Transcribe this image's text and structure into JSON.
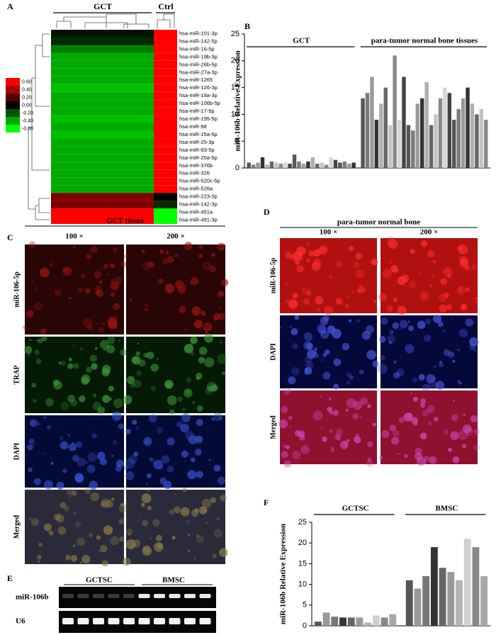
{
  "chart_data": [
    {
      "type": "heatmap",
      "panel": "A",
      "rows": [
        "hsa-miR-101-3p",
        "hsa-miR-142-5p",
        "hsa-miR-16-5p",
        "hsa-miR-19b-3p",
        "hsa-miR-26b-5p",
        "hsa-miR-27a-3p",
        "hsa-miR-1265",
        "hsa-miR-126-3p",
        "hsa-miR-19a-3p",
        "hsa-miR-106b-5p",
        "hsa-miR-17-5p",
        "hsa-miR-195-5p",
        "hsa-miR-98",
        "hsa-miR-15a-5p",
        "hsa-miR-25-3p",
        "hsa-miR-93-5p",
        "hsa-miR-20a-5p",
        "hsa-miR-376b",
        "hsa-miR-326",
        "hsa-miR-520c-5p",
        "hsa-miR-526a",
        "hsa-miR-223-3p",
        "hsa-miR-142-3p",
        "hsa-miR-451a",
        "hsa-miR-491-3p"
      ],
      "series": [
        {
          "name": "GCT",
          "values": [
            -0.05,
            -0.1,
            -0.3,
            -0.4,
            -0.4,
            -0.4,
            -0.4,
            -0.45,
            -0.4,
            -0.4,
            -0.4,
            -0.45,
            -0.4,
            -0.45,
            -0.4,
            -0.4,
            -0.4,
            -0.4,
            -0.4,
            -0.4,
            -0.4,
            0.3,
            0.3,
            0.6,
            0.6
          ]
        },
        {
          "name": "Ctrl",
          "values": [
            0.6,
            0.6,
            0.6,
            0.6,
            0.6,
            0.6,
            0.6,
            0.6,
            0.6,
            0.6,
            0.6,
            0.6,
            0.6,
            0.6,
            0.6,
            0.6,
            0.6,
            0.6,
            0.6,
            0.6,
            0.6,
            0.0,
            -0.1,
            -0.6,
            -0.6
          ]
        }
      ],
      "clim": [
        -0.6,
        0.6
      ],
      "colormap": [
        "#00ff00",
        "#000000",
        "#ff0000"
      ],
      "cticks": [
        {
          "value": 0.6,
          "label": "0.60"
        },
        {
          "value": 0.4,
          "label": "0.40"
        },
        {
          "value": 0.2,
          "label": "0.20"
        },
        {
          "value": 0,
          "label": "0.00"
        },
        {
          "value": -0.2,
          "label": "-0.20"
        },
        {
          "value": -0.4,
          "label": "-0.40"
        },
        {
          "value": -0.6,
          "label": "-0.60"
        }
      ]
    },
    {
      "type": "bar",
      "panel": "B",
      "ylabel": "miR-106b Relative Expression",
      "series": [
        {
          "name": "GCT",
          "values": [
            1.0,
            0.6,
            1.0,
            2.0,
            0.6,
            1.2,
            1.0,
            0.8,
            1.0,
            0.8,
            2.5,
            1.2,
            0.8,
            1.2,
            2.0,
            0.8,
            1.0,
            0.6,
            2.0,
            1.5,
            1.0,
            1.2,
            0.8,
            1.0
          ]
        },
        {
          "name": "para-tumor normal bone tissues",
          "values": [
            13,
            14,
            17,
            9,
            12,
            15,
            8,
            21,
            9,
            17,
            8,
            7,
            12,
            13,
            16,
            8,
            10,
            13,
            15,
            14,
            9,
            11,
            13,
            15,
            12,
            10,
            11,
            9
          ]
        }
      ],
      "palette": [
        "#555555",
        "#7a7a7a",
        "#9a9a9a",
        "#333333",
        "#b0b0b0",
        "#666666",
        "#c4c4c4",
        "#888888",
        "#d6d6d6",
        "#444444"
      ],
      "ylim": [
        0,
        25
      ],
      "yticks": [
        0,
        5,
        10,
        15,
        20,
        25
      ]
    },
    {
      "type": "bar",
      "panel": "F",
      "ylabel": "miR-106b Relative Expression",
      "series": [
        {
          "name": "GCTSC",
          "values": [
            1.0,
            3.2,
            2.2,
            2.0,
            2.0,
            2.0,
            0.8,
            2.5,
            2.0,
            2.8
          ]
        },
        {
          "name": "BMSC",
          "values": [
            11,
            9,
            12,
            19,
            14,
            13,
            11,
            21,
            19,
            12
          ]
        }
      ],
      "palette": [
        "#555555",
        "#9a9a9a",
        "#777777",
        "#333333",
        "#666666",
        "#999999",
        "#b5b5b5",
        "#d0d0d0",
        "#888888",
        "#a8a8a8"
      ],
      "ylim": [
        0,
        25
      ],
      "yticks": [
        0,
        5,
        10,
        15,
        20,
        25
      ]
    }
  ],
  "panel_c": {
    "label": "C",
    "title": "GCT  tissue",
    "columns": [
      "100 ×",
      "200 ×"
    ],
    "rows": [
      "miR-106-5p",
      "TRAP",
      "DAPI",
      "Merged"
    ]
  },
  "panel_d": {
    "label": "D",
    "title": "para-tumor normal bone",
    "columns": [
      "100 ×",
      "200 ×"
    ],
    "rows": [
      "miR-106-5p",
      "DAPI",
      "Merged"
    ]
  },
  "panel_e": {
    "label": "E",
    "lanes": [
      "GCTSC",
      "BMSC"
    ],
    "rows": [
      "miR-106b",
      "U6"
    ]
  }
}
